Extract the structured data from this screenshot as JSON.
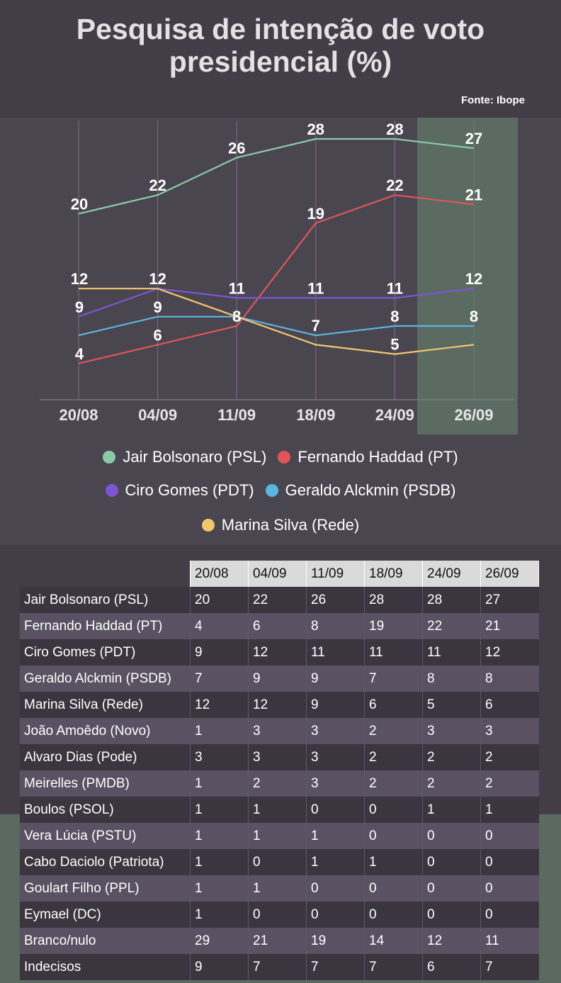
{
  "header": {
    "title_line1": "Pesquisa de intenção de voto",
    "title_line2": "presidencial (%)",
    "source": "Fonte: Ibope"
  },
  "chart_data": {
    "type": "line",
    "x": [
      "20/08",
      "04/09",
      "11/09",
      "18/09",
      "24/09",
      "26/09"
    ],
    "highlight_category": "26/09",
    "grid": "vertical",
    "legend_position": "bottom",
    "series": [
      {
        "name": "Jair Bolsonaro (PSL)",
        "color": "#8ccaa6",
        "values": [
          20,
          22,
          26,
          28,
          28,
          27
        ],
        "labels": [
          "20",
          "22",
          "26",
          "28",
          "28",
          "27"
        ]
      },
      {
        "name": "Fernando Haddad (PT)",
        "color": "#e05558",
        "values": [
          4,
          6,
          8,
          19,
          22,
          21
        ],
        "labels": [
          "4",
          "6",
          "8",
          "19",
          "22",
          "21"
        ]
      },
      {
        "name": "Ciro Gomes (PDT)",
        "color": "#7c55d6",
        "values": [
          9,
          12,
          11,
          11,
          11,
          12
        ],
        "labels": [
          "9",
          "12",
          "11",
          "11",
          "11",
          "12"
        ]
      },
      {
        "name": "Geraldo Alckmin (PSDB)",
        "color": "#5ab4e0",
        "values": [
          7,
          9,
          9,
          7,
          8,
          8
        ],
        "labels": [
          "",
          "9",
          "",
          "7",
          "8",
          "8"
        ]
      },
      {
        "name": "Marina Silva (Rede)",
        "color": "#f2c66d",
        "values": [
          12,
          12,
          9,
          6,
          5,
          6
        ],
        "labels": [
          "12",
          "",
          "",
          "",
          "5",
          ""
        ]
      }
    ]
  },
  "table": {
    "headers": [
      "20/08",
      "04/09",
      "11/09",
      "18/09",
      "24/09",
      "26/09"
    ],
    "rows": [
      {
        "name": "Jair Bolsonaro (PSL)",
        "values": [
          "20",
          "22",
          "26",
          "28",
          "28",
          "27"
        ]
      },
      {
        "name": "Fernando Haddad (PT)",
        "values": [
          "4",
          "6",
          "8",
          "19",
          "22",
          "21"
        ]
      },
      {
        "name": "Ciro Gomes (PDT)",
        "values": [
          "9",
          "12",
          "11",
          "11",
          "11",
          "12"
        ]
      },
      {
        "name": "Geraldo Alckmin (PSDB)",
        "values": [
          "7",
          "9",
          "9",
          "7",
          "8",
          "8"
        ]
      },
      {
        "name": "Marina Silva (Rede)",
        "values": [
          "12",
          "12",
          "9",
          "6",
          "5",
          "6"
        ]
      },
      {
        "name": "João Amoêdo (Novo)",
        "values": [
          "1",
          "3",
          "3",
          "2",
          "3",
          "3"
        ]
      },
      {
        "name": "Alvaro Dias (Pode)",
        "values": [
          "3",
          "3",
          "3",
          "2",
          "2",
          "2"
        ]
      },
      {
        "name": "Meirelles (PMDB)",
        "values": [
          "1",
          "2",
          "3",
          "2",
          "2",
          "2"
        ]
      },
      {
        "name": "Boulos (PSOL)",
        "values": [
          "1",
          "1",
          "0",
          "0",
          "1",
          "1"
        ]
      },
      {
        "name": "Vera Lúcia (PSTU)",
        "values": [
          "1",
          "1",
          "1",
          "0",
          "0",
          "0"
        ]
      },
      {
        "name": "Cabo Daciolo (Patriota)",
        "values": [
          "1",
          "0",
          "1",
          "1",
          "0",
          "0"
        ]
      },
      {
        "name": "Goulart Filho (PPL)",
        "values": [
          "1",
          "1",
          "0",
          "0",
          "0",
          "0"
        ]
      },
      {
        "name": "Eymael (DC)",
        "values": [
          "1",
          "0",
          "0",
          "0",
          "0",
          "0"
        ]
      },
      {
        "name": "Branco/nulo",
        "values": [
          "29",
          "21",
          "19",
          "14",
          "12",
          "11"
        ]
      },
      {
        "name": "Indecisos",
        "values": [
          "9",
          "7",
          "7",
          "7",
          "6",
          "7"
        ]
      }
    ]
  }
}
